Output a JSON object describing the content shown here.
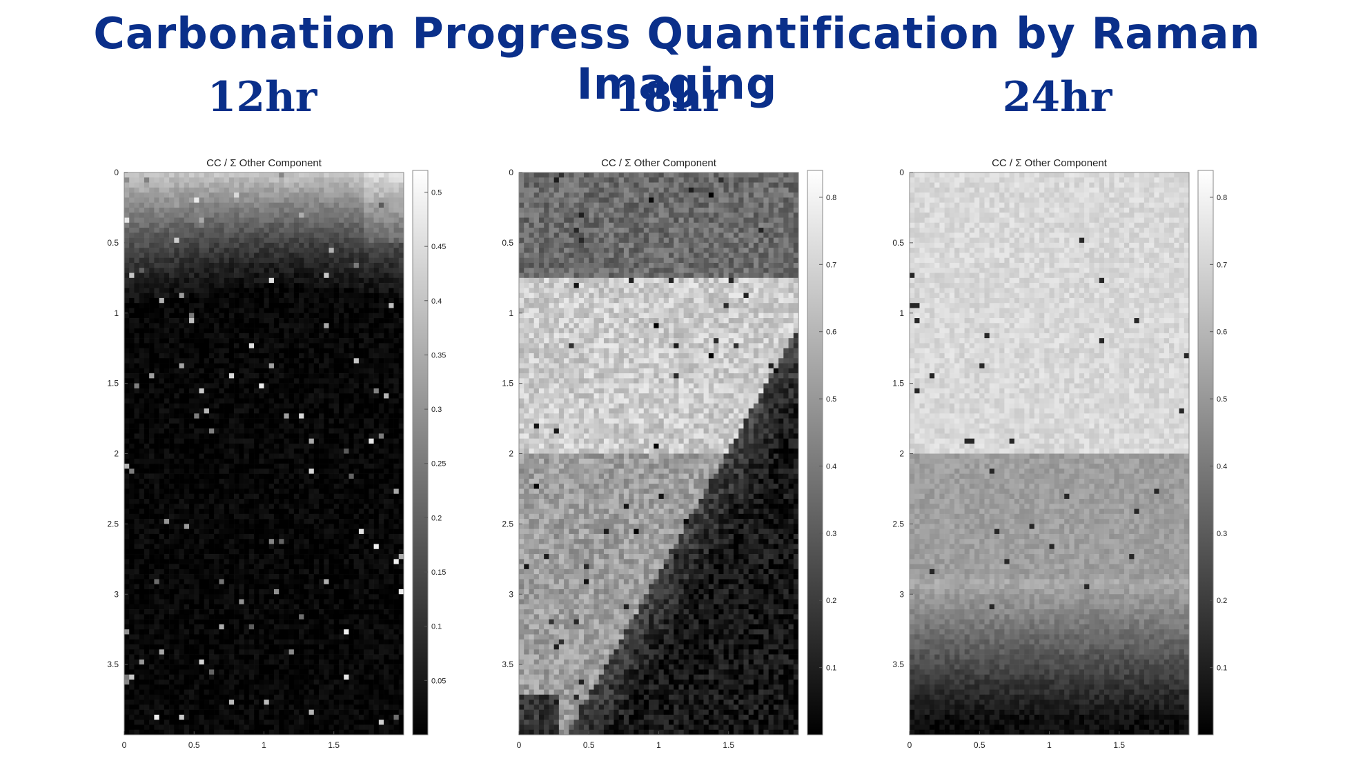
{
  "title": "Carbonation Progress Quantification by Raman Imaging",
  "time_labels": [
    "12hr",
    "18hr",
    "24hr"
  ],
  "chart_data": [
    {
      "type": "heatmap",
      "title": "CC / Σ Other Component",
      "colormap": "gray",
      "xticks": [
        "0",
        "0.5",
        "1",
        "1.5"
      ],
      "yticks": [
        "0",
        "0.5",
        "1",
        "1.5",
        "2",
        "2.5",
        "3",
        "3.5"
      ],
      "xlim": [
        0,
        2
      ],
      "ylim": [
        0,
        4
      ],
      "y_reversed": true,
      "colorbar_ticks": [
        "0.05",
        "0.1",
        "0.15",
        "0.2",
        "0.25",
        "0.3",
        "0.35",
        "0.4",
        "0.45",
        "0.5"
      ],
      "colorbar_range": [
        0,
        0.52
      ],
      "pattern": "bright at top edge (~0.35-0.5) fading to ~0 below y≈1; sparse bright specks elsewhere"
    },
    {
      "type": "heatmap",
      "title": "CC / Σ Other Component",
      "colormap": "gray",
      "xticks": [
        "0",
        "0.5",
        "1",
        "1.5"
      ],
      "yticks": [
        "0",
        "0.5",
        "1",
        "1.5",
        "2",
        "2.5",
        "3",
        "3.5"
      ],
      "xlim": [
        0,
        2
      ],
      "ylim": [
        0,
        4
      ],
      "y_reversed": true,
      "colorbar_ticks": [
        "0.1",
        "0.2",
        "0.3",
        "0.4",
        "0.5",
        "0.6",
        "0.7",
        "0.8"
      ],
      "colorbar_range": [
        0,
        0.84
      ],
      "pattern": "mid values (~0.4) for y<0.75, bright (~0.7) for 0.75<y<2, bright region bounded by a diagonal front; dark (~0.05) lower-right"
    },
    {
      "type": "heatmap",
      "title": "CC / Σ Other Component",
      "colormap": "gray",
      "xticks": [
        "0",
        "0.5",
        "1",
        "1.5"
      ],
      "yticks": [
        "0",
        "0.5",
        "1",
        "1.5",
        "2",
        "2.5",
        "3",
        "3.5"
      ],
      "xlim": [
        0,
        2
      ],
      "ylim": [
        0,
        4
      ],
      "y_reversed": true,
      "colorbar_ticks": [
        "0.1",
        "0.2",
        "0.3",
        "0.4",
        "0.5",
        "0.6",
        "0.7",
        "0.8"
      ],
      "colorbar_range": [
        0,
        0.84
      ],
      "pattern": "bright (~0.7) for y<2, medium (~0.55) for 2<y<3, dark (~0.05) toward bottom"
    }
  ]
}
